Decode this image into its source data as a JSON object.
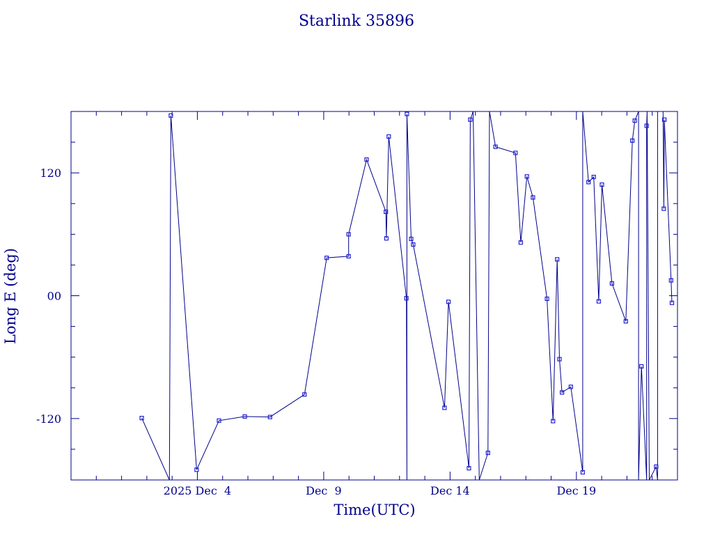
{
  "colors": {
    "ink": "#00008b",
    "marker": "#1f1fd6",
    "background": "#ffffff"
  },
  "chart_data": {
    "type": "line",
    "title": "Starlink 35896",
    "xlabel": "Time(UTC)",
    "ylabel": "Long E (deg)",
    "x_axis": {
      "type": "date",
      "range": [
        "2025-11-29T00:00",
        "2025-12-23T00:00"
      ],
      "major_ticks": [
        {
          "value": "2025-12-04",
          "label": "2025 Dec  4"
        },
        {
          "value": "2025-12-09",
          "label": "Dec  9"
        },
        {
          "value": "2025-12-14",
          "label": "Dec 14"
        },
        {
          "value": "2025-12-19",
          "label": "Dec 19"
        }
      ]
    },
    "y_axis": {
      "range": [
        -180,
        180
      ],
      "major_ticks": [
        {
          "value": 120,
          "label": "120"
        },
        {
          "value": 0,
          "label": "00"
        },
        {
          "value": -120,
          "label": "-120"
        }
      ]
    },
    "grid": false,
    "series": [
      {
        "points": [
          [
            "2025-12-01T19:11",
            -119.5
          ],
          [
            "2025-12-02T21:28",
            -180
          ],
          [
            "2025-12-02T22:48",
            176
          ],
          [
            "2025-12-03T23:17",
            -170
          ],
          [
            "2025-12-04T20:32",
            -122
          ],
          [
            "2025-12-05T21:01",
            -118
          ],
          [
            "2025-12-06T21:01",
            -118.5
          ],
          [
            "2025-12-08T05:43",
            -96.5
          ],
          [
            "2025-12-09T02:49",
            37
          ],
          [
            "2025-12-09T23:38",
            38.5
          ],
          [
            "2025-12-09T23:38",
            60
          ],
          [
            "2025-12-10T16:44",
            133
          ],
          [
            "2025-12-11T11:02",
            82
          ],
          [
            "2025-12-11T11:31",
            56
          ],
          [
            "2025-12-11T13:46",
            155.5
          ],
          [
            "2025-12-12T06:32",
            -2.5
          ],
          [
            "2025-12-12T07:01",
            -180
          ],
          [
            "2025-12-12T07:01",
            177.5
          ],
          [
            "2025-12-12T11:02",
            55.5
          ],
          [
            "2025-12-12T12:58",
            50
          ],
          [
            "2025-12-13T18:43",
            -109.5
          ],
          [
            "2025-12-13T22:28",
            -6
          ],
          [
            "2025-12-14T17:55",
            -168.5
          ],
          [
            "2025-12-14T19:11",
            172
          ],
          [
            "2025-12-14T21:55",
            180
          ],
          [
            "2025-12-15T03:43",
            -180
          ],
          [
            "2025-12-15T12:00",
            -153.5
          ],
          [
            "2025-12-15T13:26",
            180
          ],
          [
            "2025-12-15T19:11",
            145.5
          ],
          [
            "2025-12-16T14:08",
            139.5
          ],
          [
            "2025-12-16T19:11",
            52
          ],
          [
            "2025-12-17T00:58",
            116.5
          ],
          [
            "2025-12-17T06:43",
            96
          ],
          [
            "2025-12-17T20:04",
            -3
          ],
          [
            "2025-12-18T01:48",
            -122.5
          ],
          [
            "2025-12-18T05:43",
            35.5
          ],
          [
            "2025-12-18T07:55",
            -62
          ],
          [
            "2025-12-18T10:19",
            -94.5
          ],
          [
            "2025-12-18T18:43",
            -89
          ],
          [
            "2025-12-19T06:00",
            -172.5
          ],
          [
            "2025-12-19T06:00",
            180
          ],
          [
            "2025-12-19T11:31",
            111
          ],
          [
            "2025-12-19T16:26",
            116
          ],
          [
            "2025-12-19T21:14",
            -5.5
          ],
          [
            "2025-12-20T00:14",
            108.5
          ],
          [
            "2025-12-20T09:47",
            12
          ],
          [
            "2025-12-20T22:55",
            -25
          ],
          [
            "2025-12-21T05:07",
            151.5
          ],
          [
            "2025-12-21T07:26",
            171
          ],
          [
            "2025-12-21T11:02",
            180
          ],
          [
            "2025-12-21T11:02",
            -180
          ],
          [
            "2025-12-21T13:46",
            -69
          ],
          [
            "2025-12-21T18:43",
            -180
          ],
          [
            "2025-12-21T18:43",
            166
          ],
          [
            "2025-12-21T19:11",
            180
          ],
          [
            "2025-12-21T21:14",
            -180
          ],
          [
            "2025-12-22T03:43",
            -167
          ],
          [
            "2025-12-22T05:07",
            -180
          ],
          [
            "2025-12-22T05:07",
            180
          ],
          [
            "2025-12-22T10:19",
            180
          ],
          [
            "2025-12-22T11:02",
            85
          ],
          [
            "2025-12-22T11:31",
            172
          ],
          [
            "2025-12-22T17:55",
            15
          ],
          [
            "2025-12-22T18:43",
            -7
          ]
        ]
      }
    ]
  }
}
